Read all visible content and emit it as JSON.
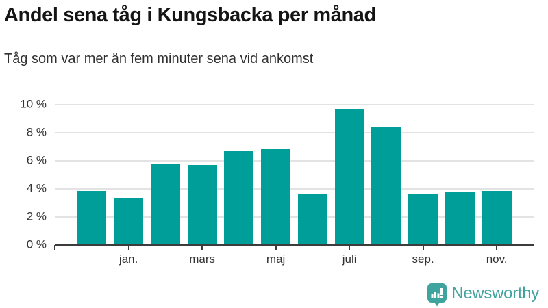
{
  "header": {
    "title": "Andel sena tåg i Kungsbacka per månad",
    "subtitle": "Tåg som var mer än fem minuter sena vid ankomst"
  },
  "chart_data": {
    "type": "bar",
    "title": "Andel sena tåg i Kungsbacka per månad",
    "subtitle": "Tåg som var mer än fem minuter sena vid ankomst",
    "unit": "percent share of late trains",
    "n_bars": 12,
    "values": [
      3.85,
      3.3,
      5.75,
      5.7,
      6.7,
      6.85,
      3.6,
      9.7,
      8.4,
      3.65,
      3.75,
      3.85
    ],
    "x_tick_labels": [
      "jan.",
      "mars",
      "maj",
      "juli",
      "sep.",
      "nov."
    ],
    "x_tick_bar_indices": [
      1,
      3,
      5,
      7,
      9,
      11
    ],
    "y_ticks": [
      0,
      2,
      4,
      6,
      8,
      10
    ],
    "y_tick_labels": [
      "0 %",
      "2 %",
      "4 %",
      "6 %",
      "8 %",
      "10 %"
    ],
    "ylim": [
      0,
      10.6
    ],
    "grid": true,
    "legend": "none",
    "bar_color": "#009E98",
    "axis_color": "#3C3C3C",
    "gridline_color": "#E3E3E3",
    "label_color": "#333333"
  },
  "footer": {
    "brand": "Newsworthy",
    "brand_color": "#3FA39E"
  }
}
